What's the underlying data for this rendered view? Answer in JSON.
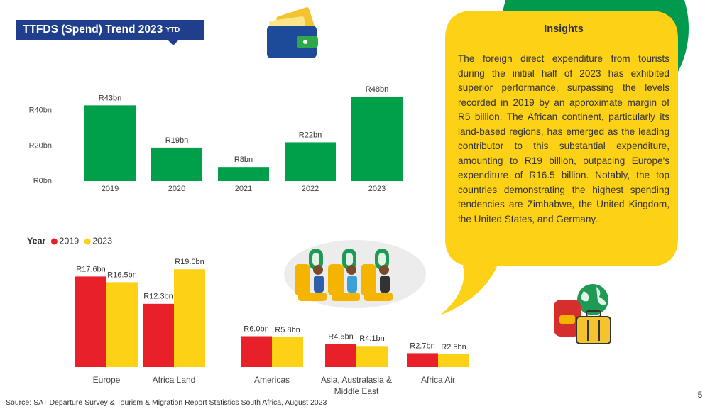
{
  "header": {
    "title": "TTFDS (Spend) Trend 2023",
    "tag": "YTD"
  },
  "chart_data": [
    {
      "type": "bar",
      "categories": [
        "2019",
        "2020",
        "2021",
        "2022",
        "2023"
      ],
      "values": [
        43,
        19,
        8,
        22,
        48
      ],
      "value_labels": [
        "R43bn",
        "R19bn",
        "R8bn",
        "R22bn",
        "R48bn"
      ],
      "color": "#00a04b",
      "ylim": [
        0,
        50
      ],
      "yticks": [
        {
          "value": 0,
          "label": "R0bn"
        },
        {
          "value": 20,
          "label": "R20bn"
        },
        {
          "value": 40,
          "label": "R40bn"
        }
      ],
      "grid": false
    },
    {
      "type": "bar",
      "legend_title": "Year",
      "categories": [
        "Europe",
        "Africa Land",
        "Americas",
        "Asia, Australasia & Middle East",
        "Africa Air"
      ],
      "series": [
        {
          "name": "2019",
          "color": "#e8202a",
          "values": [
            17.6,
            12.3,
            6.0,
            4.5,
            2.7
          ],
          "value_labels": [
            "R17.6bn",
            "R12.3bn",
            "R6.0bn",
            "R4.5bn",
            "R2.7bn"
          ]
        },
        {
          "name": "2023",
          "color": "#fcd116",
          "values": [
            16.5,
            19.0,
            5.8,
            4.1,
            2.5
          ],
          "value_labels": [
            "R16.5bn",
            "R19.0bn",
            "R5.8bn",
            "R4.1bn",
            "R2.5bn"
          ]
        }
      ],
      "ylim": [
        0,
        20
      ],
      "grid": false
    }
  ],
  "insights": {
    "title": "Insights",
    "text": "The foreign direct expenditure from tourists during the initial half of 2023 has exhibited superior performance, surpassing the levels recorded in 2019 by an approximate margin of R5 billion. The African continent, particularly its land-based regions, has emerged as the leading contributor to this substantial expenditure, amounting to R19 billion, outpacing Europe's expenditure of R16.5 billion. Notably, the top countries demonstrating the highest spending tendencies are Zimbabwe, the United Kingdom, the United States, and Germany."
  },
  "source": "Source: SAT Departure Survey &  Tourism & Migration Report Statistics South Africa, August 2023",
  "page_number": "5"
}
